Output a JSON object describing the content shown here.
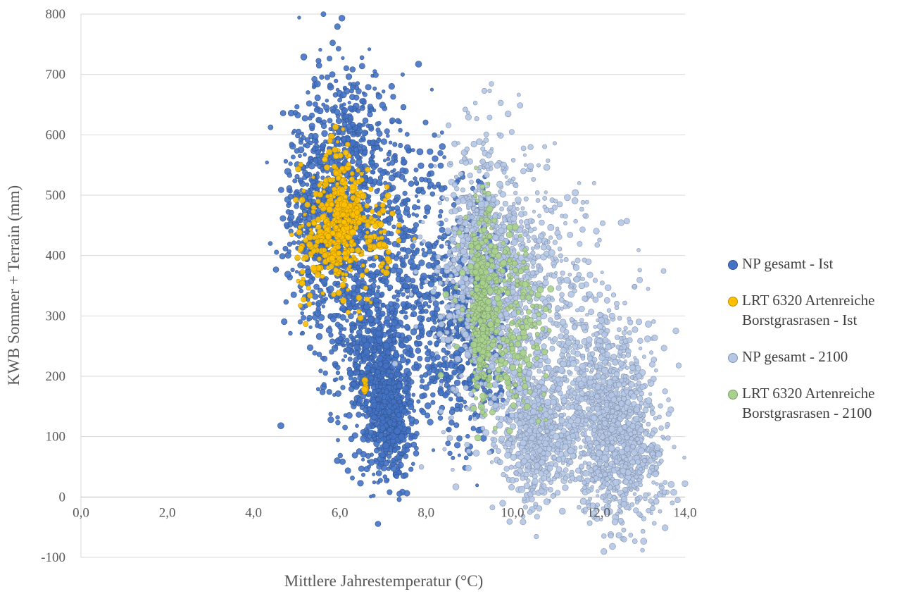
{
  "chart_data": {
    "type": "scatter",
    "xlabel": "Mittlere Jahrestemperatur (°C)",
    "ylabel": "KWB Sommer + Terrain (mm)",
    "xlim": [
      0,
      14
    ],
    "ylim": [
      -100,
      800
    ],
    "x_ticks": [
      "0,0",
      "2,0",
      "4,0",
      "6,0",
      "8,0",
      "10,0",
      "12,0",
      "14,0"
    ],
    "y_ticks": [
      "-100",
      "0",
      "100",
      "200",
      "300",
      "400",
      "500",
      "600",
      "700",
      "800"
    ],
    "grid": "horizontal",
    "legend_position": "right",
    "series": [
      {
        "name": "NP gesamt - Ist",
        "color": "#4472C4",
        "clusters": [
          {
            "x": 5.4,
            "y": 480,
            "sx": 0.35,
            "sy": 90,
            "n": 400
          },
          {
            "x": 6.3,
            "y": 560,
            "sx": 0.45,
            "sy": 80,
            "n": 400
          },
          {
            "x": 6.4,
            "y": 350,
            "sx": 0.55,
            "sy": 110,
            "n": 600
          },
          {
            "x": 7.0,
            "y": 180,
            "sx": 0.35,
            "sy": 70,
            "n": 600
          },
          {
            "x": 7.2,
            "y": 120,
            "sx": 0.2,
            "sy": 40,
            "n": 300
          },
          {
            "x": 7.6,
            "y": 420,
            "sx": 0.6,
            "sy": 100,
            "n": 350
          },
          {
            "x": 8.6,
            "y": 250,
            "sx": 0.5,
            "sy": 80,
            "n": 350
          },
          {
            "x": 9.3,
            "y": 300,
            "sx": 0.3,
            "sy": 90,
            "n": 250
          }
        ]
      },
      {
        "name": "LRT 6320 Artenreiche Borstgrasrasen - Ist",
        "color": "#FFC000",
        "clusters": [
          {
            "x": 6.0,
            "y": 460,
            "sx": 0.3,
            "sy": 55,
            "n": 350
          },
          {
            "x": 5.2,
            "y": 420,
            "sx": 0.12,
            "sy": 50,
            "n": 40
          },
          {
            "x": 6.9,
            "y": 420,
            "sx": 0.25,
            "sy": 45,
            "n": 60
          },
          {
            "x": 6.6,
            "y": 180,
            "sx": 0.04,
            "sy": 12,
            "n": 8
          }
        ]
      },
      {
        "name": "NP gesamt - 2100",
        "color": "#B4C7E7",
        "clusters": [
          {
            "x": 9.4,
            "y": 420,
            "sx": 0.6,
            "sy": 90,
            "n": 600
          },
          {
            "x": 10.4,
            "y": 270,
            "sx": 0.9,
            "sy": 120,
            "n": 900
          },
          {
            "x": 10.6,
            "y": 100,
            "sx": 0.35,
            "sy": 55,
            "n": 450
          },
          {
            "x": 12.2,
            "y": 150,
            "sx": 0.55,
            "sy": 80,
            "n": 900
          },
          {
            "x": 12.6,
            "y": 60,
            "sx": 0.5,
            "sy": 50,
            "n": 350
          }
        ]
      },
      {
        "name": "LRT 6320 Artenreiche Borstgrasrasen - 2100",
        "color": "#A9D18E",
        "clusters": [
          {
            "x": 9.3,
            "y": 320,
            "sx": 0.12,
            "sy": 80,
            "n": 250
          },
          {
            "x": 9.6,
            "y": 330,
            "sx": 0.45,
            "sy": 70,
            "n": 180
          },
          {
            "x": 10.2,
            "y": 240,
            "sx": 0.35,
            "sy": 60,
            "n": 80
          }
        ]
      }
    ]
  }
}
